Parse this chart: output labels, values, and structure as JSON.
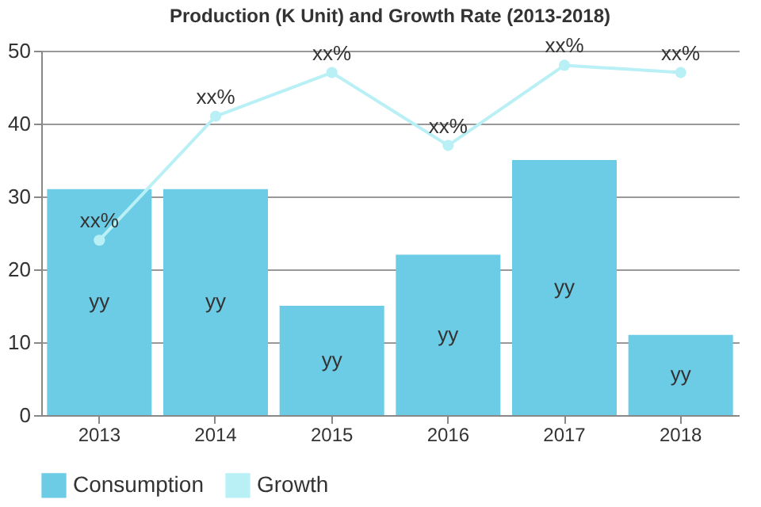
{
  "chart_data": {
    "type": "bar",
    "title": "Production (K Unit) and Growth Rate (2013-2018)",
    "categories": [
      "2013",
      "2014",
      "2015",
      "2016",
      "2017",
      "2018"
    ],
    "series": [
      {
        "name": "Consumption",
        "color": "#6ccce6",
        "values": [
          31,
          31,
          15,
          22,
          35,
          11
        ],
        "value_labels": [
          "yy",
          "yy",
          "yy",
          "yy",
          "yy",
          "yy"
        ]
      },
      {
        "name": "Growth",
        "type": "line",
        "color": "#b8f0f5",
        "values": [
          24,
          41,
          47,
          37,
          48,
          47
        ],
        "value_labels": [
          "xx%",
          "xx%",
          "xx%",
          "xx%",
          "xx%",
          "xx%"
        ]
      }
    ],
    "ylim": [
      0,
      50
    ],
    "yticks": [
      0,
      10,
      20,
      30,
      40,
      50
    ],
    "grid": "y",
    "legend": "bottom",
    "marker": "circle"
  }
}
